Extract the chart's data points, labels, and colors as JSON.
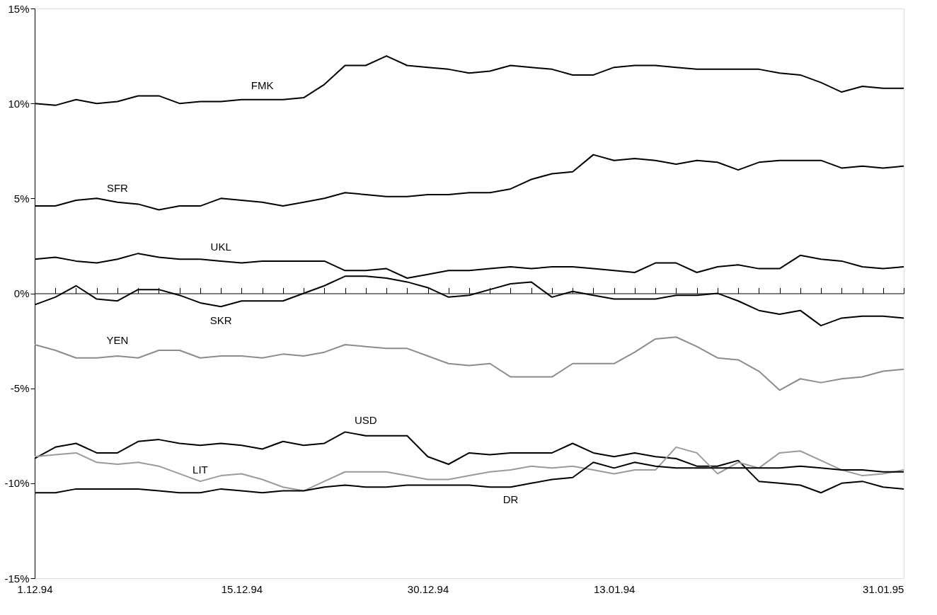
{
  "chart_data": {
    "type": "line",
    "categories": [
      "1.12.94",
      null,
      null,
      null,
      null,
      null,
      null,
      null,
      null,
      null,
      "15.12.94",
      null,
      null,
      null,
      null,
      null,
      null,
      null,
      null,
      "30.12.94",
      null,
      null,
      null,
      null,
      null,
      null,
      null,
      null,
      "13.01.94",
      null,
      null,
      null,
      null,
      null,
      null,
      null,
      null,
      null,
      null,
      null,
      null,
      "31.01.95",
      null
    ],
    "ylim": [
      -15,
      15
    ],
    "yticks": [
      {
        "value": -15,
        "label": "-15%"
      },
      {
        "value": -10,
        "label": "-10%"
      },
      {
        "value": -5,
        "label": "-5%"
      },
      {
        "value": 0,
        "label": "0%"
      },
      {
        "value": 5,
        "label": "5%"
      },
      {
        "value": 10,
        "label": "10%"
      },
      {
        "value": 15,
        "label": "15%"
      }
    ],
    "series": [
      {
        "name": "FMK",
        "color": "#000000",
        "values": [
          10.0,
          9.9,
          10.2,
          10.0,
          10.1,
          10.4,
          10.4,
          10.0,
          10.1,
          10.1,
          10.2,
          10.2,
          10.2,
          10.3,
          11.0,
          12.0,
          12.0,
          12.5,
          12.0,
          11.9,
          11.8,
          11.6,
          11.7,
          12.0,
          11.9,
          11.8,
          11.5,
          11.5,
          11.9,
          12.0,
          12.0,
          11.9,
          11.8,
          11.8,
          11.8,
          11.8,
          11.6,
          11.5,
          11.1,
          10.6,
          10.9,
          10.8,
          10.8
        ]
      },
      {
        "name": "SFR",
        "color": "#000000",
        "values": [
          4.6,
          4.6,
          4.9,
          5.0,
          4.8,
          4.7,
          4.4,
          4.6,
          4.6,
          5.0,
          4.9,
          4.8,
          4.6,
          4.8,
          5.0,
          5.3,
          5.2,
          5.1,
          5.1,
          5.2,
          5.2,
          5.3,
          5.3,
          5.5,
          6.0,
          6.3,
          6.4,
          7.3,
          7.0,
          7.1,
          7.0,
          6.8,
          7.0,
          6.9,
          6.5,
          6.9,
          7.0,
          7.0,
          7.0,
          6.6,
          6.7,
          6.6,
          6.7
        ]
      },
      {
        "name": "UKL",
        "color": "#000000",
        "values": [
          1.8,
          1.9,
          1.7,
          1.6,
          1.8,
          2.1,
          1.9,
          1.8,
          1.8,
          1.7,
          1.6,
          1.7,
          1.7,
          1.7,
          1.7,
          1.2,
          1.2,
          1.3,
          0.8,
          1.0,
          1.2,
          1.2,
          1.3,
          1.4,
          1.3,
          1.4,
          1.4,
          1.3,
          1.2,
          1.1,
          1.6,
          1.6,
          1.1,
          1.4,
          1.5,
          1.3,
          1.3,
          2.0,
          1.8,
          1.7,
          1.4,
          1.3,
          1.4
        ]
      },
      {
        "name": "SKR",
        "color": "#000000",
        "values": [
          -0.6,
          -0.2,
          0.4,
          -0.3,
          -0.4,
          0.2,
          0.2,
          -0.1,
          -0.5,
          -0.7,
          -0.4,
          -0.4,
          -0.4,
          0.0,
          0.4,
          0.9,
          0.9,
          0.8,
          0.6,
          0.3,
          -0.2,
          -0.1,
          0.2,
          0.5,
          0.6,
          -0.2,
          0.1,
          -0.1,
          -0.3,
          -0.3,
          -0.3,
          -0.1,
          -0.1,
          0.0,
          -0.4,
          -0.9,
          -1.1,
          -0.9,
          -1.7,
          -1.3,
          -1.2,
          -1.2,
          -1.3
        ]
      },
      {
        "name": "YEN",
        "color": "#8c8c8c",
        "values": [
          -2.7,
          -3.0,
          -3.4,
          -3.4,
          -3.3,
          -3.4,
          -3.0,
          -3.0,
          -3.4,
          -3.3,
          -3.3,
          -3.4,
          -3.2,
          -3.3,
          -3.1,
          -2.7,
          -2.8,
          -2.9,
          -2.9,
          -3.3,
          -3.7,
          -3.8,
          -3.7,
          -4.4,
          -4.4,
          -4.4,
          -3.7,
          -3.7,
          -3.7,
          -3.1,
          -2.4,
          -2.3,
          -2.8,
          -3.4,
          -3.5,
          -4.1,
          -5.1,
          -4.5,
          -4.7,
          -4.5,
          -4.4,
          -4.1,
          -4.0
        ]
      },
      {
        "name": "USD",
        "color": "#000000",
        "values": [
          -8.7,
          -8.1,
          -7.9,
          -8.4,
          -8.4,
          -7.8,
          -7.7,
          -7.9,
          -8.0,
          -7.9,
          -8.0,
          -8.2,
          -7.8,
          -8.0,
          -7.9,
          -7.3,
          -7.5,
          -7.5,
          -7.5,
          -8.6,
          -9.0,
          -8.4,
          -8.5,
          -8.4,
          -8.4,
          -8.4,
          -7.9,
          -8.4,
          -8.6,
          -8.4,
          -8.6,
          -8.7,
          -9.1,
          -9.1,
          -8.8,
          -9.9,
          -10.0,
          -10.1,
          -10.5,
          -10.0,
          -9.9,
          -10.2,
          -10.3
        ]
      },
      {
        "name": "LIT",
        "color": "#9a9a9a",
        "values": [
          -8.6,
          -8.5,
          -8.4,
          -8.9,
          -9.0,
          -8.9,
          -9.1,
          -9.5,
          -9.9,
          -9.6,
          -9.5,
          -9.8,
          -10.2,
          -10.4,
          -9.9,
          -9.4,
          -9.4,
          -9.4,
          -9.6,
          -9.8,
          -9.8,
          -9.6,
          -9.4,
          -9.3,
          -9.1,
          -9.2,
          -9.1,
          -9.3,
          -9.5,
          -9.3,
          -9.3,
          -8.1,
          -8.4,
          -9.5,
          -8.9,
          -9.2,
          -8.4,
          -8.3,
          -8.8,
          -9.3,
          -9.6,
          -9.5,
          -9.3
        ]
      },
      {
        "name": "DR",
        "color": "#000000",
        "values": [
          -10.5,
          -10.5,
          -10.3,
          -10.3,
          -10.3,
          -10.3,
          -10.4,
          -10.5,
          -10.5,
          -10.3,
          -10.4,
          -10.5,
          -10.4,
          -10.4,
          -10.2,
          -10.1,
          -10.2,
          -10.2,
          -10.1,
          -10.1,
          -10.1,
          -10.1,
          -10.2,
          -10.2,
          -10.0,
          -9.8,
          -9.7,
          -8.9,
          -9.2,
          -8.9,
          -9.1,
          -9.2,
          -9.2,
          -9.2,
          -9.2,
          -9.2,
          -9.2,
          -9.1,
          -9.2,
          -9.3,
          -9.3,
          -9.4,
          -9.4
        ]
      }
    ]
  }
}
